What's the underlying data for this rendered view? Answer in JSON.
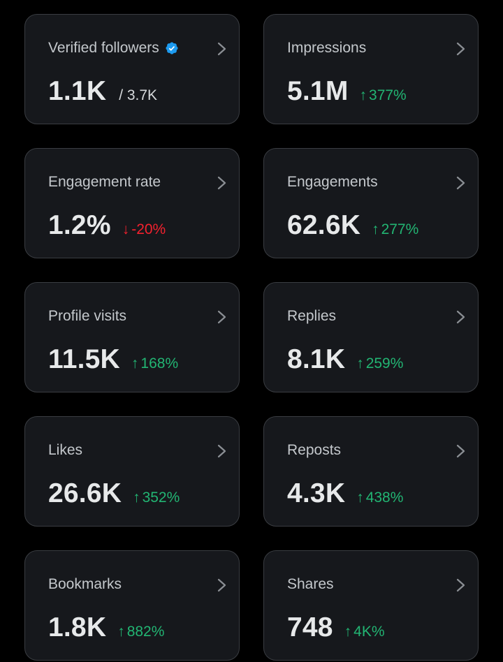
{
  "colors": {
    "background": "#000000",
    "card_background": "#16181c",
    "card_border": "#3a3d42",
    "positive": "#22b573",
    "negative": "#f4212e",
    "verified_badge": "#1d9bf0"
  },
  "cards": [
    {
      "title": "Verified followers",
      "value": "1.1K",
      "sub": "/ 3.7K",
      "verified_icon": "verified-badge-icon",
      "icon": "chevron-right-icon"
    },
    {
      "title": "Impressions",
      "value": "5.1M",
      "change_arrow": "↑",
      "change": "377%",
      "trend": "up",
      "icon": "chevron-right-icon"
    },
    {
      "title": "Engagement rate",
      "value": "1.2%",
      "change_arrow": "↓",
      "change": "-20%",
      "trend": "down",
      "icon": "chevron-right-icon"
    },
    {
      "title": "Engagements",
      "value": "62.6K",
      "change_arrow": "↑",
      "change": "277%",
      "trend": "up",
      "icon": "chevron-right-icon"
    },
    {
      "title": "Profile visits",
      "value": "11.5K",
      "change_arrow": "↑",
      "change": "168%",
      "trend": "up",
      "icon": "chevron-right-icon"
    },
    {
      "title": "Replies",
      "value": "8.1K",
      "change_arrow": "↑",
      "change": "259%",
      "trend": "up",
      "icon": "chevron-right-icon"
    },
    {
      "title": "Likes",
      "value": "26.6K",
      "change_arrow": "↑",
      "change": "352%",
      "trend": "up",
      "icon": "chevron-right-icon"
    },
    {
      "title": "Reposts",
      "value": "4.3K",
      "change_arrow": "↑",
      "change": "438%",
      "trend": "up",
      "icon": "chevron-right-icon"
    },
    {
      "title": "Bookmarks",
      "value": "1.8K",
      "change_arrow": "↑",
      "change": "882%",
      "trend": "up",
      "icon": "chevron-right-icon"
    },
    {
      "title": "Shares",
      "value": "748",
      "change_arrow": "↑",
      "change": "4K%",
      "trend": "up",
      "icon": "chevron-right-icon"
    }
  ]
}
